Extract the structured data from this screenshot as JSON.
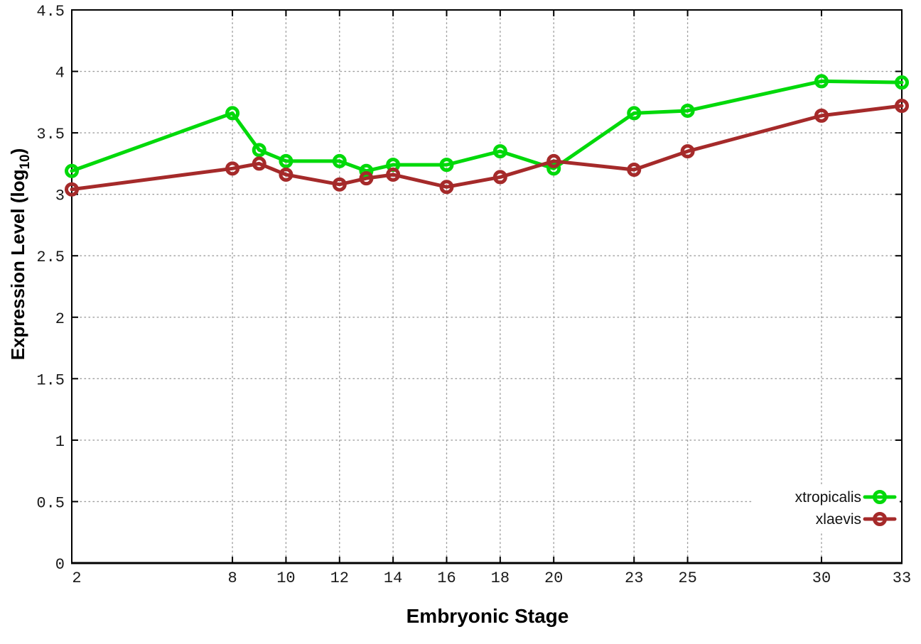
{
  "figure": {
    "background": "#ffffff",
    "border_color": "#000000",
    "grid_color": "#9e9e9e",
    "tick_label_color": "#1a1a1a",
    "ylabel_prefix": "Expression Level (log",
    "ylabel_sub": "10",
    "ylabel_suffix": ")"
  },
  "chart_data": {
    "type": "line",
    "title": "",
    "xlabel": "Embryonic Stage",
    "ylabel": "Expression Level (log10)",
    "x": [
      2,
      8,
      9,
      10,
      12,
      13,
      14,
      16,
      18,
      20,
      23,
      25,
      30,
      33
    ],
    "series": [
      {
        "name": "xtropicalis",
        "color": "#00d90a",
        "marker": "open-circle",
        "values": [
          3.19,
          3.66,
          3.36,
          3.27,
          3.27,
          3.19,
          3.24,
          3.24,
          3.35,
          3.21,
          3.66,
          3.68,
          3.92,
          3.91
        ]
      },
      {
        "name": "xlaevis",
        "color": "#a52a2a",
        "marker": "open-circle",
        "values": [
          3.04,
          3.21,
          3.25,
          3.16,
          3.08,
          3.13,
          3.16,
          3.06,
          3.14,
          3.27,
          3.2,
          3.35,
          3.64,
          3.72
        ]
      }
    ],
    "xlim": [
      2,
      33
    ],
    "ylim": [
      0,
      4.5
    ],
    "xticks": [
      2,
      8,
      10,
      12,
      14,
      16,
      18,
      20,
      23,
      25,
      30,
      33
    ],
    "xtick_labels": [
      "2",
      "8",
      "10",
      "12",
      "14",
      "16",
      "18",
      "20",
      "23",
      "25",
      "30",
      "33"
    ],
    "yticks": [
      0,
      0.5,
      1,
      1.5,
      2,
      2.5,
      3,
      3.5,
      4,
      4.5
    ],
    "ytick_labels": [
      "0",
      "0.5",
      "1",
      "1.5",
      "2",
      "2.5",
      "3",
      "3.5",
      "4",
      "4.5"
    ],
    "grid": "dotted",
    "legend_position": "bottom-right-inside",
    "legend": [
      "xtropicalis",
      "xlaevis"
    ]
  }
}
